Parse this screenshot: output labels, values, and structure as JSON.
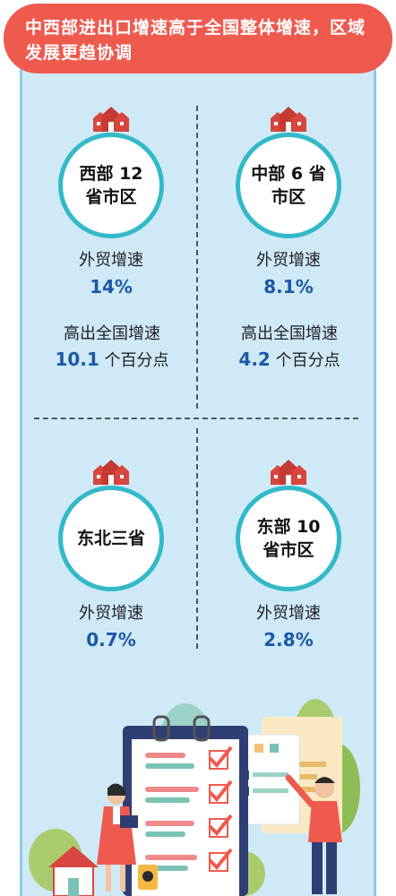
{
  "header": {
    "title": "中西部进出口增速高于全国整体增速，区域发展更趋协调"
  },
  "labels": {
    "trade_growth": "外贸增速",
    "above_national": "高出全国增速",
    "unit_points": "个百分点"
  },
  "regions": [
    {
      "name": "西部 12 省市区",
      "trade_growth": "14%",
      "above_national": "10.1"
    },
    {
      "name": "中部 6 省市区",
      "trade_growth": "8.1%",
      "above_national": "4.2"
    },
    {
      "name": "东北三省",
      "trade_growth": "0.7%"
    },
    {
      "name": "东部 10 省市区",
      "trade_growth": "2.8%"
    }
  ],
  "colors": {
    "header_bg": "#ef5a4f",
    "panel_bg": "#cfe9f6",
    "circle_ring": "#33b9c8",
    "value_blue": "#1b58a6",
    "house_red": "#d7463f"
  }
}
